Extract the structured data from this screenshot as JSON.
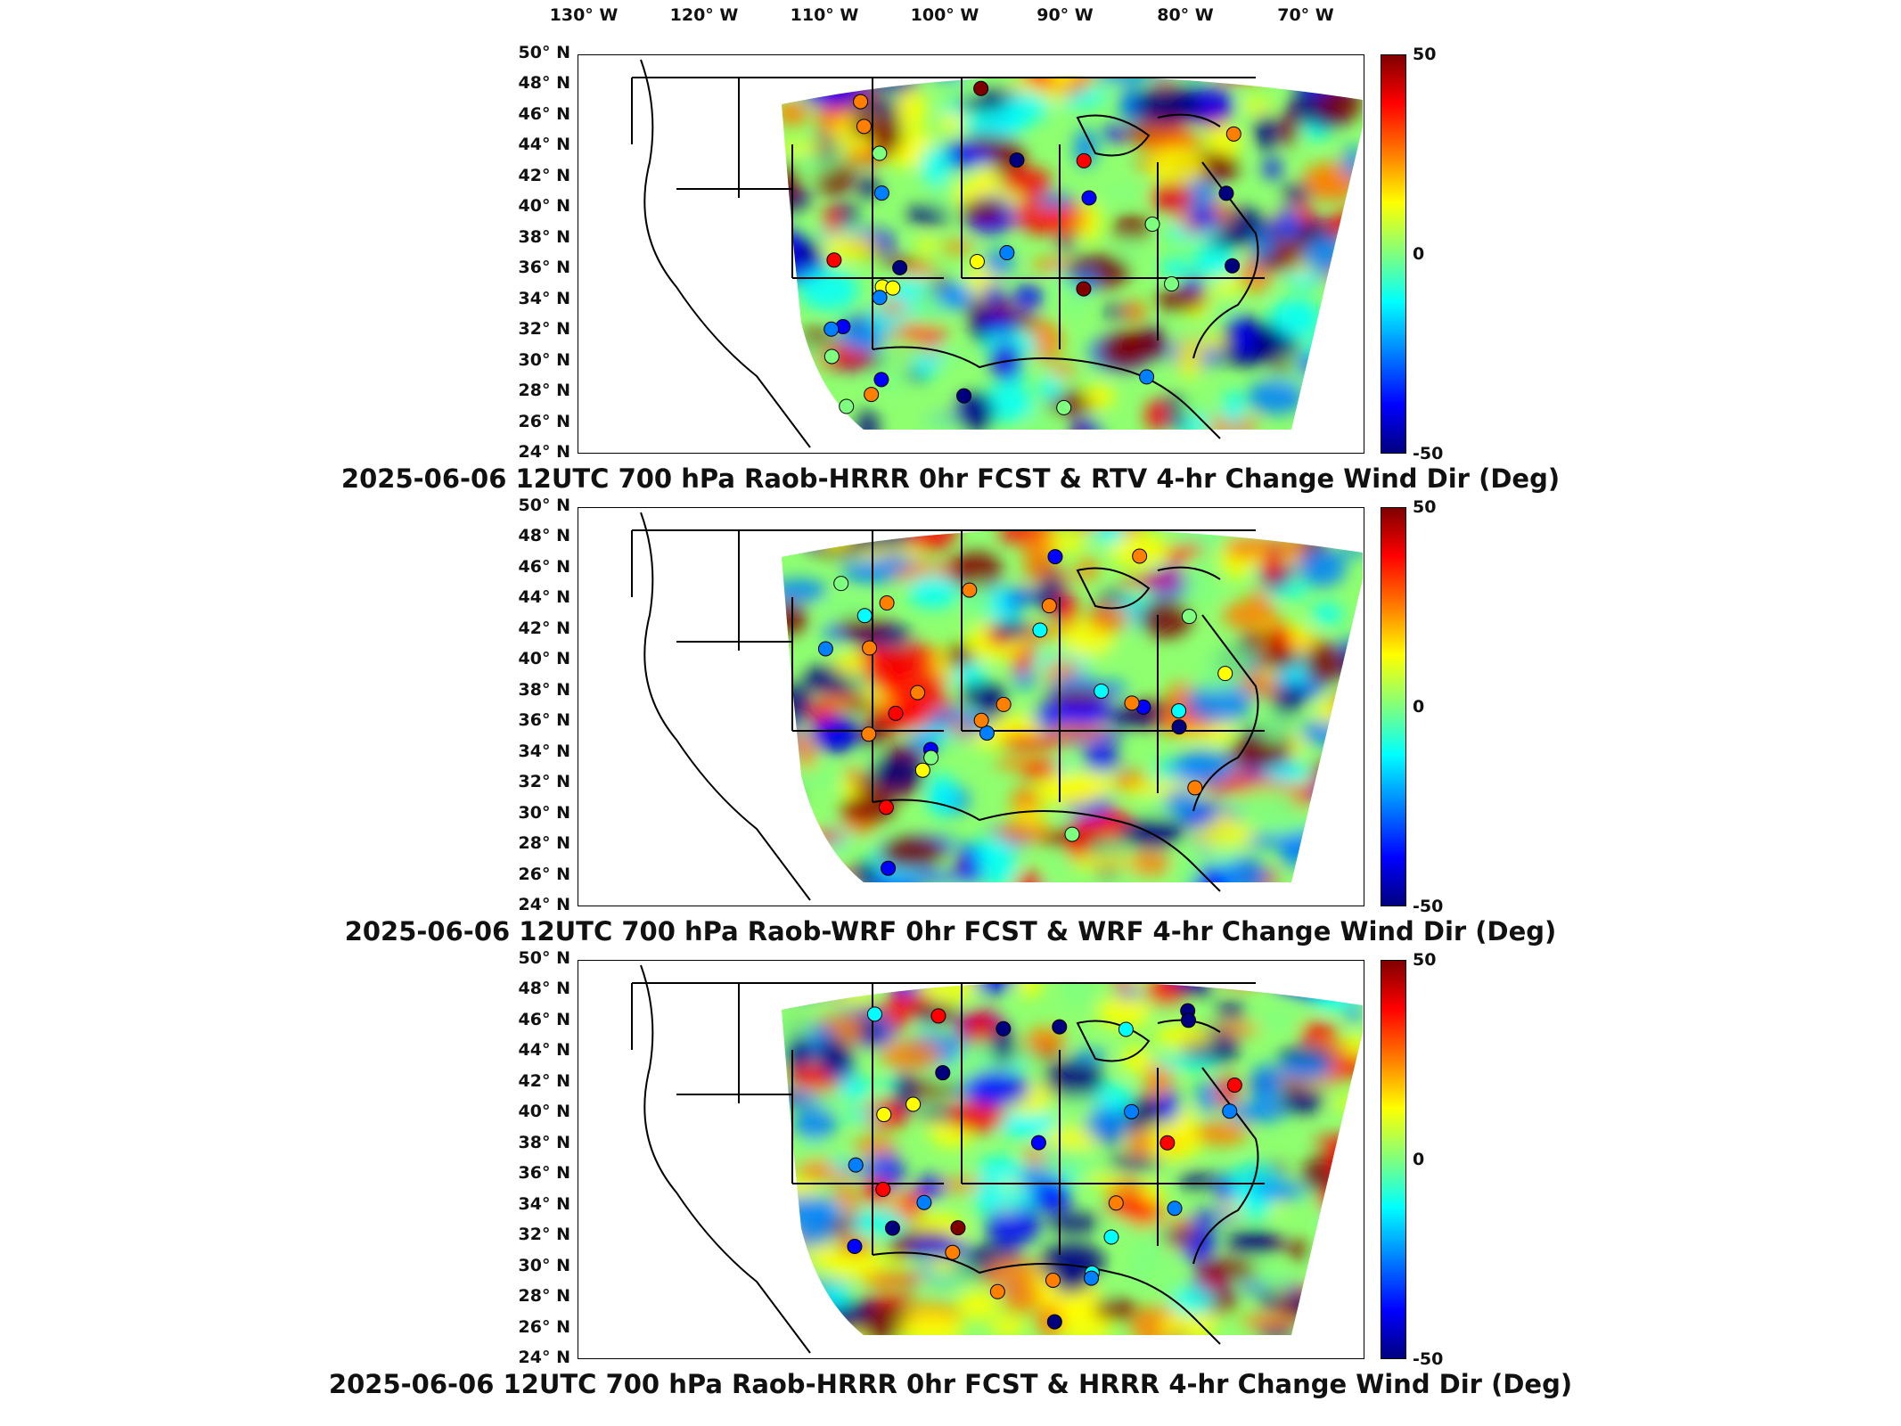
{
  "longitude_labels": [
    "130° W",
    "120° W",
    "110° W",
    "100° W",
    "90° W",
    "80° W",
    "70° W"
  ],
  "latitude_labels": [
    "50° N",
    "48° N",
    "46° N",
    "44° N",
    "42° N",
    "40° N",
    "38° N",
    "36° N",
    "34° N",
    "32° N",
    "30° N",
    "28° N",
    "26° N",
    "24° N"
  ],
  "colorbar": {
    "max_label": "50",
    "mid_label": "0",
    "min_label": "-50",
    "colormap": "jet"
  },
  "panels": [
    {
      "caption": "2025-06-06 12UTC 700 hPa Raob-HRRR 0hr FCST & RTV 4-hr Change Wind Dir (Deg)"
    },
    {
      "caption": "2025-06-06 12UTC 700 hPa Raob-WRF 0hr FCST & WRF 4-hr Change Wind Dir (Deg)"
    },
    {
      "caption": "2025-06-06 12UTC 700 hPa Raob-HRRR 0hr FCST & HRRR 4-hr Change Wind Dir (Deg)"
    }
  ]
}
